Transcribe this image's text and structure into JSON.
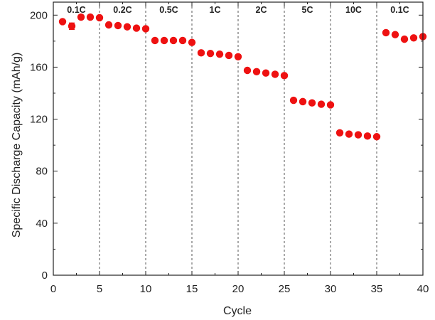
{
  "chart_data": {
    "type": "scatter",
    "xlabel": "Cycle",
    "ylabel": "Specific Discharge Capacity (mAh/g)",
    "xlim": [
      0,
      40
    ],
    "ylim": [
      0,
      210
    ],
    "xticks": [
      0,
      5,
      10,
      15,
      20,
      25,
      30,
      35,
      40
    ],
    "yticks": [
      0,
      40,
      80,
      120,
      160,
      200
    ],
    "grid": "dashed vertical separators at segment boundaries",
    "marker_color": "#ee1111",
    "segments": [
      {
        "label": "0.1C",
        "x_start": 0,
        "x_end": 5
      },
      {
        "label": "0.2C",
        "x_start": 5,
        "x_end": 10
      },
      {
        "label": "0.5C",
        "x_start": 10,
        "x_end": 15
      },
      {
        "label": "1C",
        "x_start": 15,
        "x_end": 20
      },
      {
        "label": "2C",
        "x_start": 20,
        "x_end": 25
      },
      {
        "label": "5C",
        "x_start": 25,
        "x_end": 30
      },
      {
        "label": "10C",
        "x_start": 30,
        "x_end": 35
      },
      {
        "label": "0.1C",
        "x_start": 35,
        "x_end": 40
      }
    ],
    "series": [
      {
        "x": [
          1,
          2,
          3,
          4,
          5,
          6,
          7,
          8,
          9,
          10,
          11,
          12,
          13,
          14,
          15,
          16,
          17,
          18,
          19,
          20,
          21,
          22,
          23,
          24,
          25,
          26,
          27,
          28,
          29,
          30,
          31,
          32,
          33,
          34,
          35,
          36,
          37,
          38,
          39,
          40
        ],
        "y": [
          195,
          191.5,
          198.5,
          198.5,
          198,
          192.5,
          192,
          191,
          190,
          189.5,
          180.5,
          180.5,
          180.5,
          180.5,
          179,
          171,
          170.5,
          170,
          169,
          168,
          157.5,
          156.5,
          155.5,
          154.5,
          153.5,
          134.5,
          133.5,
          132.5,
          131.5,
          131,
          109.5,
          108.5,
          108,
          107,
          106.5,
          186.5,
          185,
          181.5,
          182.5,
          183.5
        ],
        "err": [
          0,
          2.5,
          0,
          0,
          0,
          0,
          0,
          0,
          0,
          0,
          0,
          0,
          0,
          0,
          0,
          0,
          0,
          0,
          0,
          0,
          0,
          0,
          0,
          0,
          0,
          0,
          0,
          0,
          0,
          0,
          0,
          0,
          0,
          0,
          0,
          0,
          0,
          0,
          0,
          0
        ]
      }
    ]
  }
}
